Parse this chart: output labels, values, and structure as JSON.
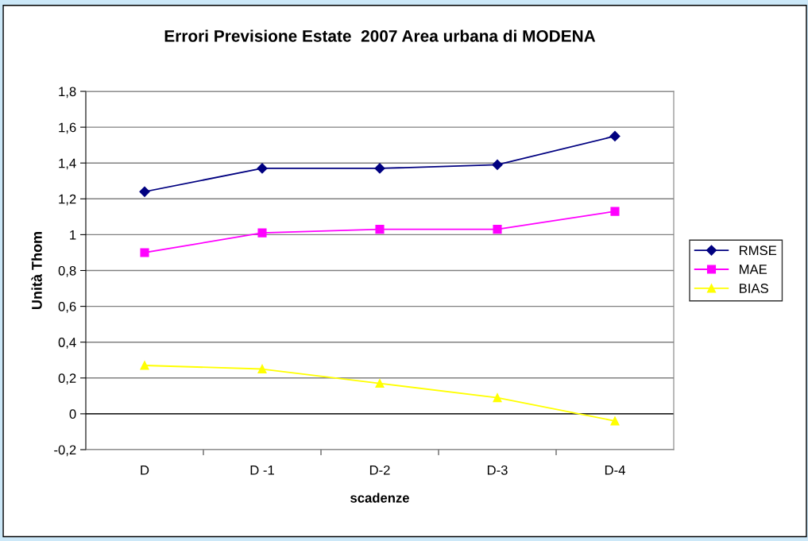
{
  "chart_data": {
    "type": "line",
    "title": "Errori Previsione Estate  2007 Area urbana di MODENA",
    "xlabel": "scadenze",
    "ylabel": "Unità Thom",
    "categories": [
      "D",
      "D -1",
      "D-2",
      "D-3",
      "D-4"
    ],
    "series": [
      {
        "name": "RMSE",
        "color": "#000080",
        "marker": "diamond",
        "values": [
          1.24,
          1.37,
          1.37,
          1.39,
          1.55
        ]
      },
      {
        "name": "MAE",
        "color": "#ff00ff",
        "marker": "square",
        "values": [
          0.9,
          1.01,
          1.03,
          1.03,
          1.13
        ]
      },
      {
        "name": "BIAS",
        "color": "#ffff00",
        "marker": "triangle",
        "values": [
          0.27,
          0.25,
          0.17,
          0.09,
          -0.04
        ]
      }
    ],
    "ylim": [
      -0.2,
      1.8
    ],
    "yticks": [
      {
        "value": -0.2,
        "label": "-0,2"
      },
      0,
      {
        "value": 0.2,
        "label": "0,2"
      },
      {
        "value": 0.4,
        "label": "0,4"
      },
      {
        "value": 0.6,
        "label": "0,6"
      },
      {
        "value": 0.8,
        "label": "0,8"
      },
      1,
      {
        "value": 1.2,
        "label": "1,2"
      },
      {
        "value": 1.4,
        "label": "1,4"
      },
      {
        "value": 1.6,
        "label": "1,6"
      },
      {
        "value": 1.8,
        "label": "1,8"
      }
    ],
    "grid": "y",
    "legend": "right",
    "line_style": "solid"
  }
}
